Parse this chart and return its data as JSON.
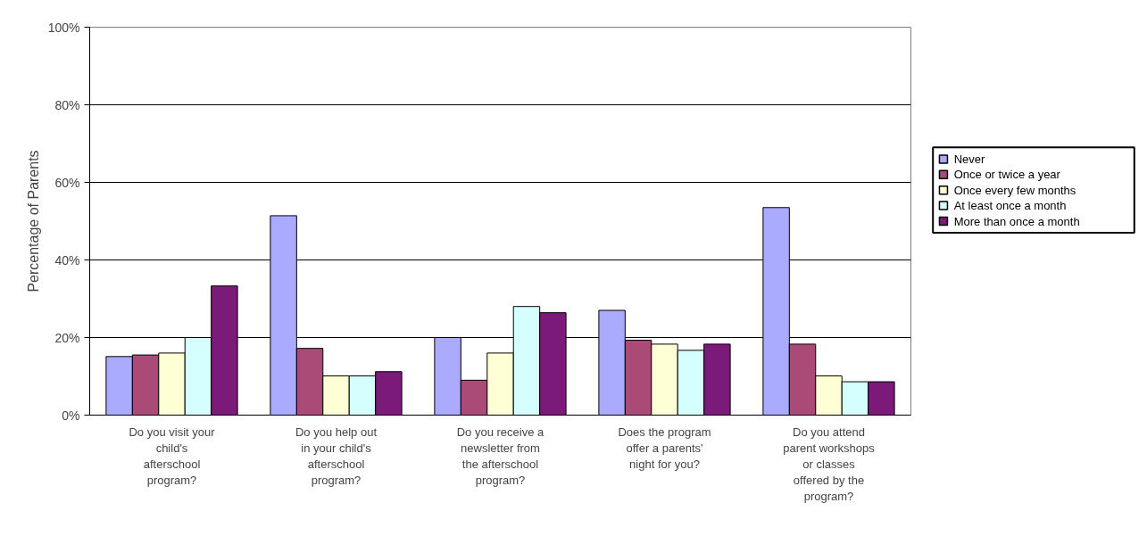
{
  "chart_data": {
    "type": "bar",
    "ylabel": "Percentage of Parents",
    "categories": [
      "Do you visit your child's afterschool program?",
      "Do you help out in your child's afterschool program?",
      "Do you receive a newsletter from the afterschool program?",
      "Does the program offer a parents' night for you?",
      "Do you attend parent workshops or classes offered by the program?"
    ],
    "series": [
      {
        "name": "Never",
        "color": "#aaaaff",
        "values": [
          15.1,
          51.4,
          20.0,
          27.0,
          53.5
        ]
      },
      {
        "name": "Once or twice a year",
        "color": "#a94a77",
        "values": [
          15.5,
          17.2,
          9.0,
          19.3,
          18.3
        ]
      },
      {
        "name": "Once every few months",
        "color": "#ffffd5",
        "values": [
          16.0,
          10.1,
          16.0,
          18.3,
          10.1
        ]
      },
      {
        "name": "At least once a month",
        "color": "#d5ffff",
        "values": [
          20.0,
          10.1,
          28.0,
          16.7,
          8.6
        ]
      },
      {
        "name": "More than once a month",
        "color": "#7b1a78",
        "values": [
          33.3,
          11.2,
          26.4,
          18.3,
          8.6
        ]
      }
    ],
    "ylim": [
      0,
      100
    ],
    "yticks": [
      {
        "value": 0,
        "label": "0%"
      },
      {
        "value": 20,
        "label": "20%"
      },
      {
        "value": 40,
        "label": "40%"
      },
      {
        "value": 60,
        "label": "60%"
      },
      {
        "value": 80,
        "label": "80%"
      },
      {
        "value": 100,
        "label": "100%"
      }
    ],
    "grid": "y",
    "legend": "right"
  }
}
